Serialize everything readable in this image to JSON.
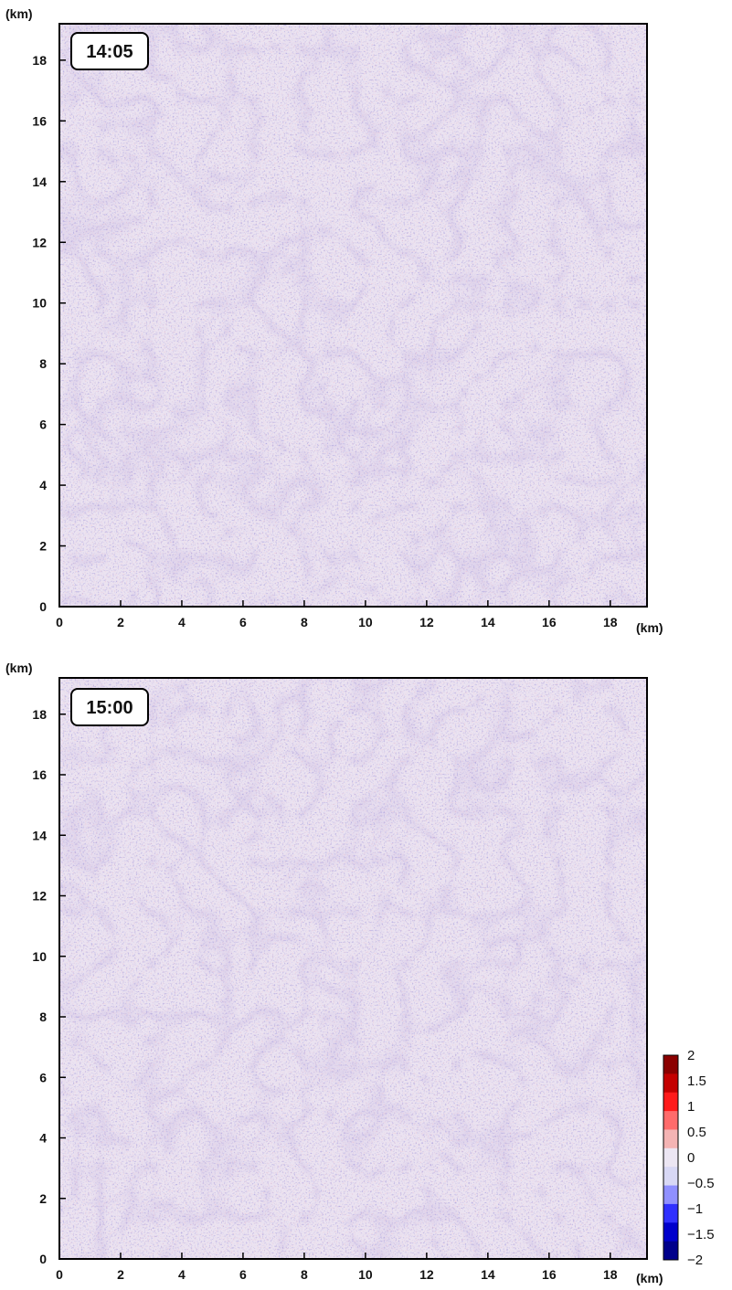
{
  "chart_data": [
    {
      "type": "heatmap",
      "timestamp": "14:05",
      "xlabel": "(km)",
      "ylabel": "(km)",
      "xlim": [
        0,
        19.2
      ],
      "ylim": [
        0,
        19.2
      ],
      "xticks": [
        "0",
        "2",
        "4",
        "6",
        "8",
        "10",
        "12",
        "14",
        "16",
        "18"
      ],
      "yticks": [
        "0",
        "2",
        "4",
        "6",
        "8",
        "10",
        "12",
        "14",
        "16",
        "18"
      ],
      "grid": false,
      "background_value": 0
    },
    {
      "type": "heatmap",
      "timestamp": "15:00",
      "xlabel": "(km)",
      "ylabel": "(km)",
      "xlim": [
        0,
        19.2
      ],
      "ylim": [
        0,
        19.2
      ],
      "xticks": [
        "0",
        "2",
        "4",
        "6",
        "8",
        "10",
        "12",
        "14",
        "16",
        "18"
      ],
      "yticks": [
        "0",
        "2",
        "4",
        "6",
        "8",
        "10",
        "12",
        "14",
        "16",
        "18"
      ],
      "grid": false,
      "background_value": 0
    }
  ],
  "colorbar": {
    "range": [
      -2,
      2
    ],
    "tick_labels": [
      "2",
      "1.5",
      "1",
      "0.5",
      "0",
      "−0.5",
      "−1",
      "−1.5",
      "−2"
    ],
    "colors": [
      "#8b0000",
      "#c40000",
      "#ff1a1a",
      "#ff6b6b",
      "#f4b4b4",
      "#ece6f3",
      "#d8d8f5",
      "#9090ff",
      "#3030ff",
      "#0000cc",
      "#00008b"
    ]
  }
}
